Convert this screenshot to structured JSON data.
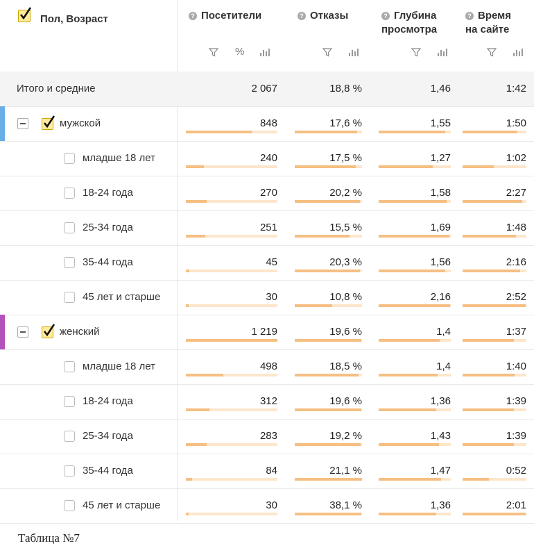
{
  "header": {
    "dimension_title": "Пол, Возраст",
    "columns": [
      {
        "id": "visitors",
        "title_lines": [
          "Посетители"
        ]
      },
      {
        "id": "bounces",
        "title_lines": [
          "Отказы"
        ]
      },
      {
        "id": "depth",
        "title_lines": [
          "Глубина",
          "просмотра"
        ]
      },
      {
        "id": "time",
        "title_lines": [
          "Время",
          "на сайте"
        ]
      }
    ],
    "help_icon": "question-circle-icon",
    "filter_icon": "filter-icon",
    "percent_label": "%",
    "bars_icon": "bar-chart-icon"
  },
  "total": {
    "label": "Итого и средние",
    "visitors": "2 067",
    "bounces": "18,8 %",
    "depth": "1,46",
    "time": "1:42"
  },
  "colors": {
    "male": "#6aaee8",
    "female": "#b352b9",
    "bar": "#f6bf82",
    "bar_bg": "#fde6cc",
    "check_fill": "#ffeba0"
  },
  "groups": [
    {
      "label": "мужской",
      "color": "male",
      "values": {
        "visitors": "848",
        "bounces": "17,6 %",
        "depth": "1,55",
        "time": "1:50"
      },
      "fill": {
        "visitors": 0.72,
        "bounces": 0.93,
        "depth": 0.92,
        "time": 0.86
      },
      "rows": [
        {
          "label": "младше 18 лет",
          "visitors": "240",
          "bounces": "17,5 %",
          "depth": "1,27",
          "time": "1:02",
          "fill": {
            "visitors": 0.2,
            "bounces": 0.91,
            "depth": 0.75,
            "time": 0.49
          }
        },
        {
          "label": "18-24 года",
          "visitors": "270",
          "bounces": "20,2 %",
          "depth": "1,58",
          "time": "2:27",
          "fill": {
            "visitors": 0.23,
            "bounces": 0.97,
            "depth": 0.94,
            "time": 0.93
          }
        },
        {
          "label": "25-34 года",
          "visitors": "251",
          "bounces": "15,5 %",
          "depth": "1,69",
          "time": "1:48",
          "fill": {
            "visitors": 0.21,
            "bounces": 0.81,
            "depth": 0.98,
            "time": 0.84
          }
        },
        {
          "label": "35-44 года",
          "visitors": "45",
          "bounces": "20,3 %",
          "depth": "1,56",
          "time": "2:16",
          "fill": {
            "visitors": 0.04,
            "bounces": 0.97,
            "depth": 0.92,
            "time": 0.9
          }
        },
        {
          "label": "45 лет и старше",
          "visitors": "30",
          "bounces": "10,8 %",
          "depth": "2,16",
          "time": "2:52",
          "fill": {
            "visitors": 0.03,
            "bounces": 0.56,
            "depth": 0.99,
            "time": 0.99
          }
        }
      ]
    },
    {
      "label": "женский",
      "color": "female",
      "values": {
        "visitors": "1 219",
        "bounces": "19,6 %",
        "depth": "1,4",
        "time": "1:37"
      },
      "fill": {
        "visitors": 1.0,
        "bounces": 0.99,
        "depth": 0.85,
        "time": 0.8
      },
      "rows": [
        {
          "label": "младше 18 лет",
          "visitors": "498",
          "bounces": "18,5 %",
          "depth": "1,4",
          "time": "1:40",
          "fill": {
            "visitors": 0.41,
            "bounces": 0.95,
            "depth": 0.82,
            "time": 0.82
          }
        },
        {
          "label": "18-24 года",
          "visitors": "312",
          "bounces": "19,6 %",
          "depth": "1,36",
          "time": "1:39",
          "fill": {
            "visitors": 0.26,
            "bounces": 0.99,
            "depth": 0.8,
            "time": 0.8
          }
        },
        {
          "label": "25-34 года",
          "visitors": "283",
          "bounces": "19,2 %",
          "depth": "1,43",
          "time": "1:39",
          "fill": {
            "visitors": 0.23,
            "bounces": 0.98,
            "depth": 0.84,
            "time": 0.8
          }
        },
        {
          "label": "35-44 года",
          "visitors": "84",
          "bounces": "21,1 %",
          "depth": "1,47",
          "time": "0:52",
          "fill": {
            "visitors": 0.07,
            "bounces": 1.0,
            "depth": 0.87,
            "time": 0.41
          }
        },
        {
          "label": "45 лет и старше",
          "visitors": "30",
          "bounces": "38,1 %",
          "depth": "1,36",
          "time": "2:01",
          "fill": {
            "visitors": 0.03,
            "bounces": 0.99,
            "depth": 0.8,
            "time": 0.99
          }
        }
      ]
    }
  ],
  "caption": "Таблица №7"
}
